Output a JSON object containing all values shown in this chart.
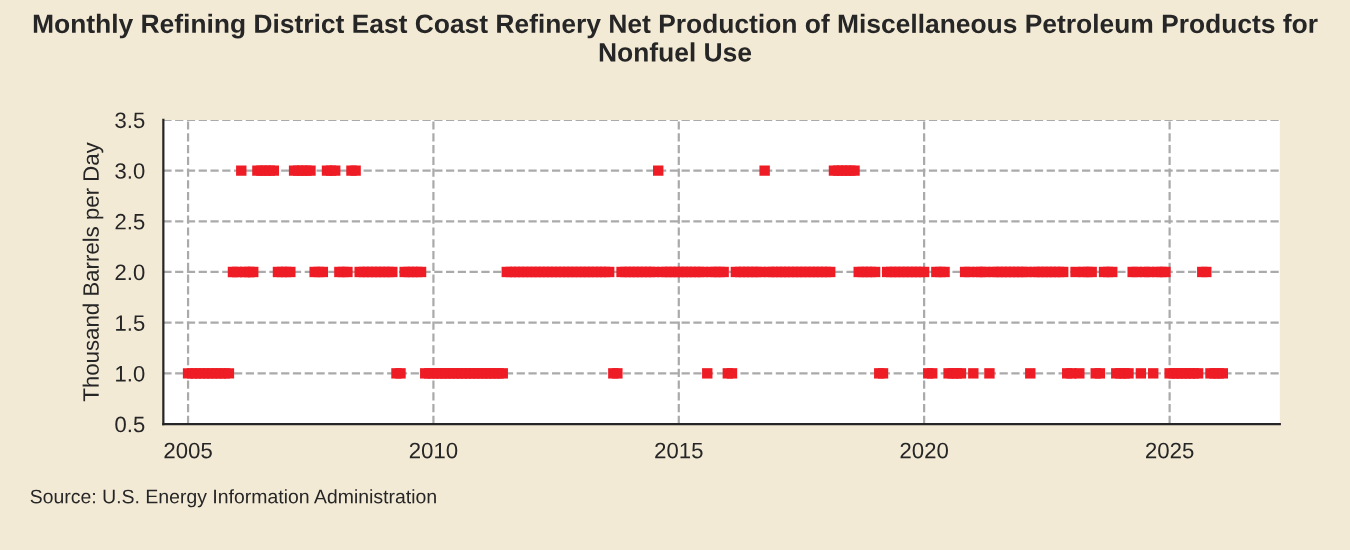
{
  "chart_data": {
    "type": "scatter",
    "title": "Monthly Refining District East Coast Refinery Net Production of Miscellaneous Petroleum Products for Nonfuel Use",
    "ylabel": "Thousand Barrels per Day",
    "annotations": [
      "Source: U.S. Energy Information Administration"
    ],
    "xlim": [
      "2004-07",
      "2027-04"
    ],
    "xticks": [
      "2005",
      "2010",
      "2015",
      "2020",
      "2025"
    ],
    "ylim": [
      0.5,
      3.5
    ],
    "yticks": [
      {
        "value": 0.5,
        "label": "0.5"
      },
      {
        "value": 1,
        "label": "1.0"
      },
      {
        "value": 1.5,
        "label": "1.5"
      },
      {
        "value": 2,
        "label": "2.0"
      },
      {
        "value": 2.5,
        "label": "2.5"
      },
      {
        "value": 3,
        "label": "3.0"
      },
      {
        "value": 3.5,
        "label": "3.5"
      }
    ],
    "grid": true,
    "marker": "square",
    "series": [
      {
        "color": "#ee1c25",
        "x": [
          "2005-01",
          "2005-02",
          "2005-03",
          "2005-04",
          "2005-05",
          "2005-06",
          "2005-07",
          "2005-08",
          "2005-09",
          "2005-10",
          "2005-11",
          "2005-12",
          "2006-01",
          "2006-02",
          "2006-03",
          "2006-04",
          "2006-05",
          "2006-06",
          "2006-07",
          "2006-08",
          "2006-09",
          "2006-10",
          "2006-11",
          "2006-12",
          "2007-01",
          "2007-02",
          "2007-03",
          "2007-04",
          "2007-05",
          "2007-06",
          "2007-07",
          "2007-08",
          "2007-09",
          "2007-10",
          "2007-11",
          "2007-12",
          "2008-01",
          "2008-02",
          "2008-03",
          "2008-04",
          "2008-05",
          "2008-06",
          "2008-07",
          "2008-08",
          "2008-09",
          "2008-10",
          "2008-11",
          "2008-12",
          "2009-01",
          "2009-02",
          "2009-03",
          "2009-04",
          "2009-05",
          "2009-06",
          "2009-07",
          "2009-08",
          "2009-09",
          "2009-10",
          "2009-11",
          "2009-12",
          "2010-01",
          "2010-02",
          "2010-03",
          "2010-04",
          "2010-05",
          "2010-06",
          "2010-07",
          "2010-08",
          "2010-09",
          "2010-10",
          "2010-11",
          "2010-12",
          "2011-01",
          "2011-02",
          "2011-03",
          "2011-04",
          "2011-05",
          "2011-06",
          "2011-07",
          "2011-08",
          "2011-09",
          "2011-10",
          "2011-11",
          "2011-12",
          "2012-01",
          "2012-02",
          "2012-03",
          "2012-04",
          "2012-05",
          "2012-06",
          "2012-07",
          "2012-08",
          "2012-09",
          "2012-10",
          "2012-11",
          "2012-12",
          "2013-01",
          "2013-02",
          "2013-03",
          "2013-04",
          "2013-05",
          "2013-06",
          "2013-07",
          "2013-08",
          "2013-09",
          "2013-10",
          "2013-11",
          "2013-12",
          "2014-01",
          "2014-02",
          "2014-03",
          "2014-04",
          "2014-05",
          "2014-06",
          "2014-07",
          "2014-08",
          "2014-09",
          "2014-10",
          "2014-11",
          "2014-12",
          "2015-01",
          "2015-02",
          "2015-03",
          "2015-04",
          "2015-05",
          "2015-06",
          "2015-07",
          "2015-08",
          "2015-09",
          "2015-10",
          "2015-11",
          "2015-12",
          "2016-01",
          "2016-02",
          "2016-03",
          "2016-04",
          "2016-05",
          "2016-06",
          "2016-07",
          "2016-08",
          "2016-09",
          "2016-10",
          "2016-11",
          "2016-12",
          "2017-01",
          "2017-02",
          "2017-03",
          "2017-04",
          "2017-05",
          "2017-06",
          "2017-07",
          "2017-08",
          "2017-09",
          "2017-10",
          "2017-11",
          "2017-12",
          "2018-01",
          "2018-02",
          "2018-03",
          "2018-04",
          "2018-05",
          "2018-06",
          "2018-07",
          "2018-08",
          "2018-09",
          "2018-10",
          "2018-11",
          "2018-12",
          "2019-01",
          "2019-02",
          "2019-03",
          "2019-04",
          "2019-05",
          "2019-06",
          "2019-07",
          "2019-08",
          "2019-09",
          "2019-10",
          "2019-11",
          "2019-12",
          "2020-01",
          "2020-02",
          "2020-03",
          "2020-04",
          "2020-05",
          "2020-06",
          "2020-07",
          "2020-08",
          "2020-09",
          "2020-10",
          "2020-11",
          "2020-12",
          "2021-01",
          "2021-02",
          "2021-03",
          "2021-04",
          "2021-05",
          "2021-06",
          "2021-07",
          "2021-08",
          "2021-09",
          "2021-10",
          "2021-11",
          "2021-12",
          "2022-01",
          "2022-02",
          "2022-03",
          "2022-04",
          "2022-05",
          "2022-06",
          "2022-07",
          "2022-08",
          "2022-09",
          "2022-10",
          "2022-11",
          "2022-12",
          "2023-01",
          "2023-02",
          "2023-03",
          "2023-04",
          "2023-05",
          "2023-06",
          "2023-07",
          "2023-08",
          "2023-09",
          "2023-10",
          "2023-11",
          "2023-12",
          "2024-01",
          "2024-02",
          "2024-03",
          "2024-04",
          "2024-05",
          "2024-06",
          "2024-07",
          "2024-08",
          "2024-09",
          "2024-10",
          "2024-11",
          "2024-12",
          "2025-01",
          "2025-02",
          "2025-03",
          "2025-04",
          "2025-05",
          "2025-06",
          "2025-07",
          "2025-08",
          "2025-09",
          "2025-10",
          "2025-11",
          "2025-12",
          "2026-01",
          "2026-02"
        ],
        "values": [
          1,
          1,
          1,
          1,
          1,
          1,
          1,
          1,
          1,
          1,
          1,
          2,
          2,
          3,
          2,
          2,
          2,
          3,
          3,
          3,
          3,
          3,
          2,
          2,
          2,
          2,
          3,
          3,
          3,
          3,
          3,
          2,
          2,
          2,
          3,
          3,
          3,
          2,
          2,
          2,
          3,
          3,
          2,
          2,
          2,
          2,
          2,
          2,
          2,
          2,
          2,
          1,
          1,
          2,
          2,
          2,
          2,
          2,
          1,
          1,
          1,
          1,
          1,
          1,
          1,
          1,
          1,
          1,
          1,
          1,
          1,
          1,
          1,
          1,
          1,
          1,
          1,
          1,
          2,
          2,
          2,
          2,
          2,
          2,
          2,
          2,
          2,
          2,
          2,
          2,
          2,
          2,
          2,
          2,
          2,
          2,
          2,
          2,
          2,
          2,
          2,
          2,
          2,
          2,
          1,
          1,
          2,
          2,
          2,
          2,
          2,
          2,
          2,
          2,
          2,
          3,
          2,
          2,
          2,
          2,
          2,
          2,
          2,
          2,
          2,
          2,
          2,
          1,
          2,
          2,
          2,
          2,
          1,
          1,
          2,
          2,
          2,
          2,
          2,
          2,
          2,
          3,
          2,
          2,
          2,
          2,
          2,
          2,
          2,
          2,
          2,
          2,
          2,
          2,
          2,
          2,
          2,
          2,
          3,
          3,
          3,
          3,
          3,
          3,
          2,
          2,
          2,
          2,
          2,
          1,
          1,
          2,
          2,
          2,
          2,
          2,
          2,
          2,
          2,
          2,
          2,
          1,
          1,
          2,
          2,
          2,
          1,
          1,
          1,
          1,
          2,
          2,
          1,
          2,
          2,
          2,
          1,
          2,
          2,
          2,
          2,
          2,
          2,
          2,
          2,
          2,
          1,
          2,
          2,
          2,
          2,
          2,
          2,
          2,
          2,
          1,
          1,
          2,
          1,
          2,
          2,
          2,
          1,
          1,
          2,
          2,
          2,
          1,
          1,
          1,
          1,
          2,
          2,
          1,
          2,
          2,
          1,
          2,
          2,
          2,
          1,
          1,
          1,
          1,
          1,
          1,
          1,
          1,
          2,
          2,
          1,
          1,
          1,
          1
        ]
      }
    ]
  }
}
